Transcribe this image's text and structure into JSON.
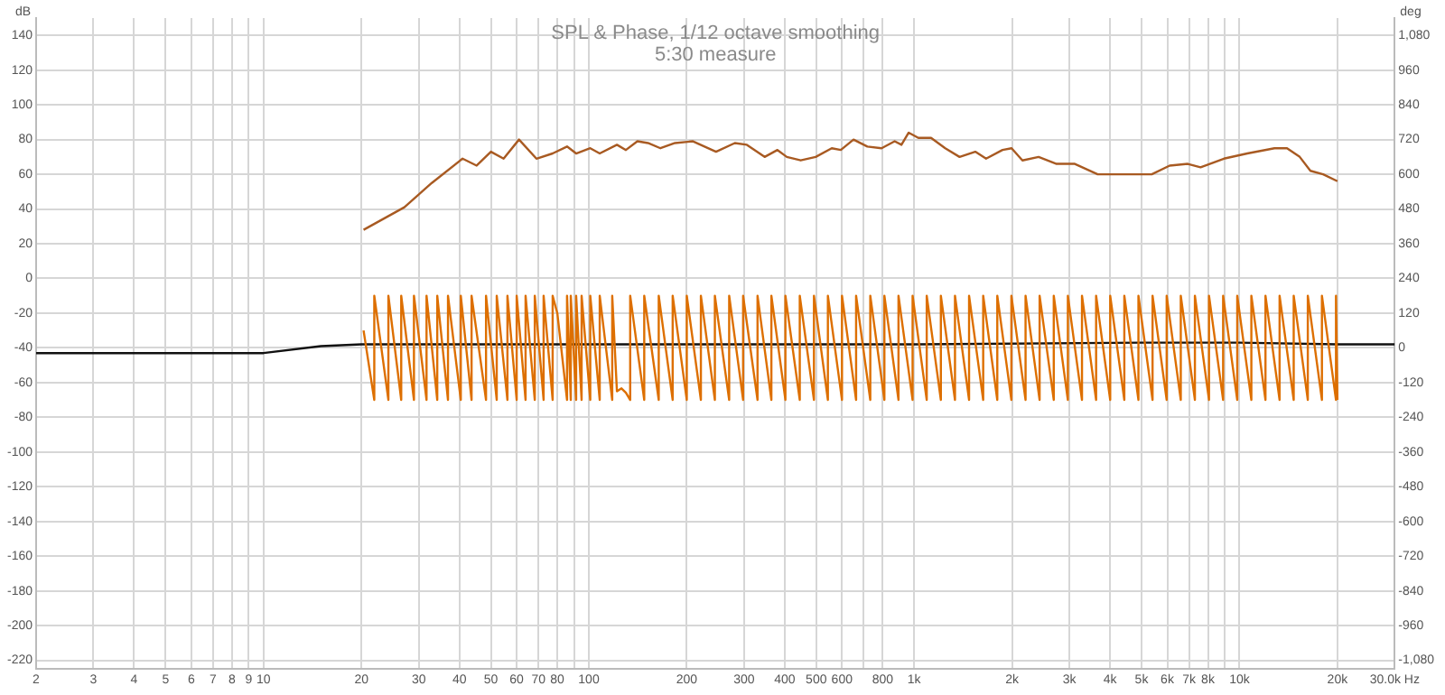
{
  "chart_data": {
    "type": "line",
    "title": "SPL & Phase, 1/12 octave smoothing",
    "subtitle": "5:30 measure",
    "ylabel": "dB",
    "y2label": "deg",
    "log": "x",
    "grid": true,
    "legend": false,
    "marker": "none",
    "line_style": "solid",
    "xlim": [
      2,
      30000
    ],
    "xticks": [
      2,
      3,
      4,
      5,
      6,
      7,
      8,
      9,
      10,
      20,
      30,
      40,
      50,
      60,
      70,
      80,
      {
        "value": 90,
        "label": null
      },
      100,
      200,
      300,
      400,
      500,
      600,
      {
        "value": 700,
        "label": null
      },
      800,
      {
        "value": 1000,
        "label": "1k"
      },
      {
        "value": 2000,
        "label": "2k"
      },
      {
        "value": 3000,
        "label": "3k"
      },
      {
        "value": 4000,
        "label": "4k"
      },
      {
        "value": 5000,
        "label": "5k"
      },
      {
        "value": 6000,
        "label": "6k"
      },
      {
        "value": 7000,
        "label": "7k"
      },
      {
        "value": 8000,
        "label": "8k"
      },
      {
        "value": 9000,
        "label": null
      },
      {
        "value": 10000,
        "label": "10k"
      },
      {
        "value": 20000,
        "label": "20k"
      },
      {
        "value": 30000,
        "label": "30.0k Hz"
      }
    ],
    "ylim": [
      -225,
      150
    ],
    "yticks": [
      -220,
      -200,
      -180,
      -160,
      -140,
      -120,
      -100,
      -80,
      -60,
      -40,
      -20,
      0,
      20,
      40,
      60,
      80,
      100,
      120,
      140
    ],
    "y2lim": [
      -1110,
      1140
    ],
    "y2ticks": [
      {
        "value": -1080,
        "label": "-1,080"
      },
      -960,
      -840,
      -720,
      -600,
      -480,
      -360,
      -240,
      -120,
      0,
      120,
      240,
      360,
      480,
      600,
      720,
      840,
      960,
      {
        "value": 1080,
        "label": "1,080"
      }
    ],
    "series": [
      {
        "axis": "y2",
        "color": "#dd6f00",
        "x": [
          20.3,
          21.9,
          21.9,
          24.2,
          24.2,
          26.5,
          26.5,
          29.0,
          29.0,
          31.7,
          31.7,
          34.2,
          34.2,
          36.9,
          36.9,
          40.4,
          40.4,
          43.6,
          43.6,
          48.3,
          48.3,
          52.1,
          52.1,
          56.2,
          56.2,
          60.0,
          60.0,
          63.9,
          63.9,
          68.2,
          68.2,
          72.6,
          72.6,
          77.4,
          77.4,
          80,
          85.7,
          85.7,
          88.0,
          88.0,
          91.4,
          91.4,
          95.0,
          95.0,
          101,
          101,
          108,
          108,
          118,
          118,
          122,
          126,
          130,
          134,
          134,
          148,
          148,
          164,
          164,
          181,
          181,
          200,
          200,
          221,
          221,
          244,
          244,
          270,
          270,
          298,
          298,
          330,
          330,
          364,
          364,
          402,
          402,
          445,
          445,
          492,
          492,
          543,
          543,
          600,
          600,
          663,
          663,
          733,
          733,
          810,
          810,
          895,
          895,
          989,
          989,
          1093,
          1093,
          1208,
          1208,
          1335,
          1335,
          1475,
          1475,
          1630,
          1630,
          1801,
          1801,
          1990,
          1990,
          2200,
          2200,
          2430,
          2430,
          2686,
          2686,
          2968,
          2968,
          3280,
          3280,
          3625,
          3625,
          4005,
          4005,
          4426,
          4426,
          4891,
          4891,
          5405,
          5405,
          5973,
          5973,
          6600,
          6600,
          7294,
          7294,
          8060,
          8060,
          8907,
          8907,
          9843,
          9843,
          10877,
          10877,
          12020,
          12020,
          13282,
          13282,
          14678,
          14678,
          16220,
          16220,
          17924,
          17924,
          19800,
          19800,
          20000
        ],
        "values": [
          60,
          -180,
          180,
          -180,
          180,
          -180,
          180,
          -180,
          180,
          -180,
          180,
          -180,
          180,
          -180,
          180,
          -180,
          180,
          -180,
          180,
          -180,
          180,
          -180,
          180,
          -180,
          180,
          -180,
          180,
          -180,
          180,
          -180,
          180,
          -180,
          180,
          -180,
          180,
          120,
          -180,
          180,
          -180,
          180,
          -180,
          180,
          -180,
          180,
          -180,
          180,
          -180,
          180,
          -180,
          180,
          -150,
          -140,
          -155,
          -180,
          180,
          -180,
          180,
          -180,
          180,
          -180,
          180,
          -180,
          180,
          -180,
          180,
          -180,
          180,
          -180,
          180,
          -180,
          180,
          -180,
          180,
          -180,
          180,
          -180,
          180,
          -180,
          180,
          -180,
          180,
          -180,
          180,
          -180,
          180,
          -180,
          180,
          -180,
          180,
          -180,
          180,
          -180,
          180,
          -180,
          180,
          -180,
          180,
          -180,
          180,
          -180,
          180,
          -180,
          180,
          -180,
          180,
          -180,
          180,
          -180,
          180,
          -180,
          180,
          -180,
          180,
          -180,
          180,
          -180,
          180,
          -180,
          180,
          -180,
          180,
          -180,
          180,
          -180,
          180,
          -180,
          180,
          -180,
          180,
          -180,
          180,
          -180,
          180,
          -180,
          180,
          -180,
          180,
          -180,
          180,
          -180,
          180,
          -180,
          180,
          -180,
          180,
          -180,
          180,
          -180,
          180,
          -180,
          180,
          -180,
          180,
          -180,
          180,
          -180
        ]
      },
      {
        "axis": "y",
        "color": "#111111",
        "x": [
          2,
          10,
          15,
          20,
          100,
          1000,
          5000,
          10000,
          20000,
          30000
        ],
        "values": [
          -43,
          -43,
          -39,
          -38,
          -38,
          -38,
          -37,
          -37,
          -38,
          -38
        ]
      },
      {
        "axis": "y",
        "color": "#a85a22",
        "x": [
          20.3,
          27.1,
          32.9,
          40.9,
          45.2,
          50.0,
          54.7,
          61.0,
          69.0,
          77.4,
          85.7,
          91.4,
          101,
          108,
          122,
          130,
          141,
          152,
          166,
          184,
          209,
          246,
          281,
          306,
          347,
          380,
          406,
          448,
          498,
          558,
          595,
          651,
          718,
          794,
          871,
          914,
          962,
          1030,
          1127,
          1246,
          1379,
          1541,
          1664,
          1869,
          1993,
          2152,
          2413,
          2740,
          3118,
          3666,
          4169,
          5374,
          6100,
          6936,
          7592,
          8955,
          10570,
          12810,
          14000,
          15320,
          16520,
          18080,
          20000
        ],
        "values": [
          28,
          41,
          55,
          69,
          65,
          73,
          69,
          80,
          69,
          72,
          76,
          72,
          75,
          72,
          77,
          74,
          79,
          78,
          75,
          78,
          79,
          73,
          78,
          77,
          70,
          74,
          70,
          68,
          70,
          75,
          74,
          80,
          76,
          75,
          79,
          77,
          84,
          81,
          81,
          75,
          70,
          73,
          69,
          74,
          75,
          68,
          70,
          66,
          66,
          60,
          60,
          60,
          65,
          66,
          64,
          69,
          72,
          75,
          75,
          70,
          62,
          60,
          56
        ]
      }
    ]
  }
}
